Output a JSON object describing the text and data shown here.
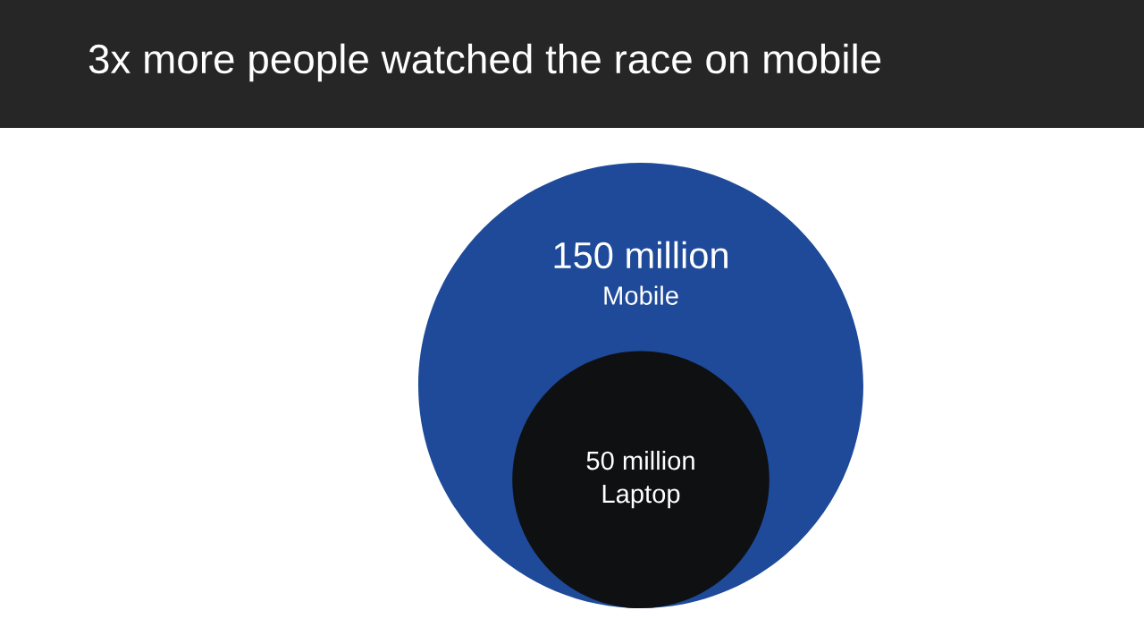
{
  "chart_data": {
    "type": "other",
    "title": "3x more people watched the race on mobile",
    "categories": [
      "Mobile",
      "Laptop"
    ],
    "values": [
      150,
      50
    ],
    "value_labels": [
      "150 million",
      "50 million"
    ],
    "colors": [
      "#1e4a99",
      "#0f1012"
    ]
  }
}
